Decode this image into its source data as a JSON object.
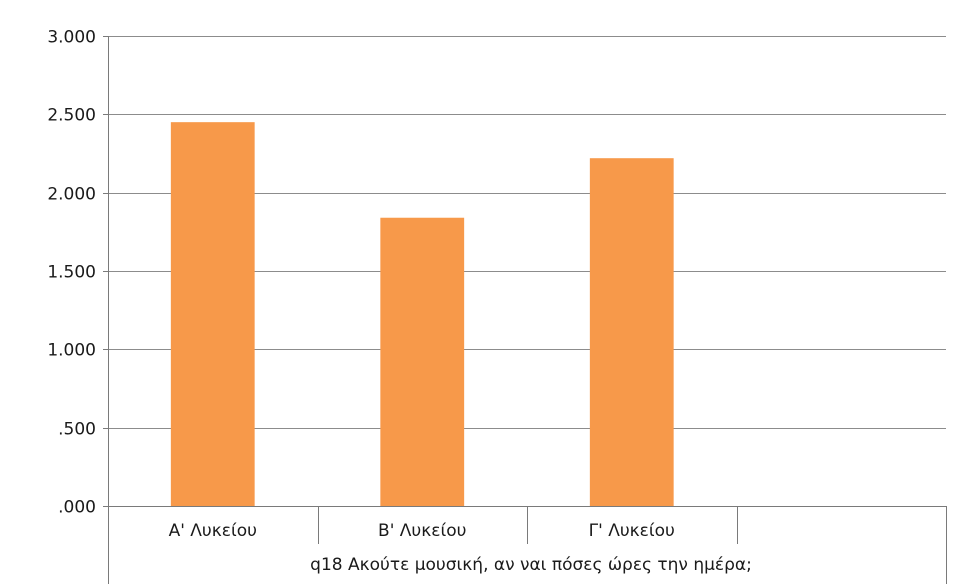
{
  "chart_data": {
    "type": "bar",
    "categories": [
      "Α' Λυκείου",
      "Β' Λυκείου",
      "Γ' Λυκείου",
      ""
    ],
    "values": [
      2.45,
      1.84,
      2.22,
      null
    ],
    "xlabel": "q18 Ακούτε μουσική, αν ναι πόσες ώρες την ημέρα;",
    "ylabel": "",
    "ylim": [
      0,
      3
    ],
    "yticks": [
      0,
      0.5,
      1,
      1.5,
      2,
      2.5,
      3
    ],
    "ytick_labels": [
      ".000",
      ".500",
      "1.000",
      "1.500",
      "2.000",
      "2.500",
      "3.000"
    ],
    "grid": true,
    "bar_color": "#f7994a",
    "grid_color": "#8c8c8c",
    "axis_color": "#7a7a7a"
  }
}
